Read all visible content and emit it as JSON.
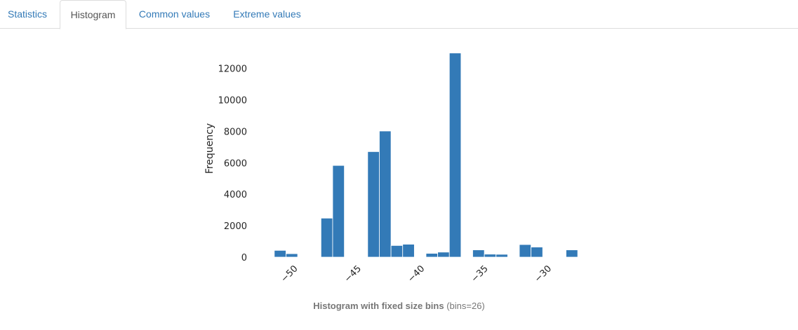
{
  "tabs": [
    {
      "label": "Statistics"
    },
    {
      "label": "Histogram"
    },
    {
      "label": "Common values"
    },
    {
      "label": "Extreme values"
    }
  ],
  "caption": {
    "bold": "Histogram with fixed size bins",
    "suffix": " (bins=26)"
  },
  "chart_data": {
    "type": "bar",
    "title": "",
    "xlabel": "",
    "ylabel": "Frequency",
    "bar_color": "#337ab7",
    "x_start": -51.6,
    "bin_width": 0.92,
    "xlim": [
      -52.2,
      -27.3
    ],
    "ylim": [
      0,
      13500
    ],
    "xticks": [
      -50,
      -45,
      -40,
      -35,
      -30
    ],
    "xtick_labels": [
      "−50",
      "−45",
      "−40",
      "−35",
      "−30"
    ],
    "yticks": [
      0,
      2000,
      4000,
      6000,
      8000,
      10000,
      12000
    ],
    "values": [
      430,
      220,
      0,
      0,
      2480,
      5830,
      0,
      0,
      6710,
      8020,
      740,
      820,
      0,
      240,
      320,
      12980,
      0,
      460,
      190,
      180,
      0,
      800,
      640,
      0,
      0,
      460
    ],
    "grid": false,
    "legend": "none"
  }
}
